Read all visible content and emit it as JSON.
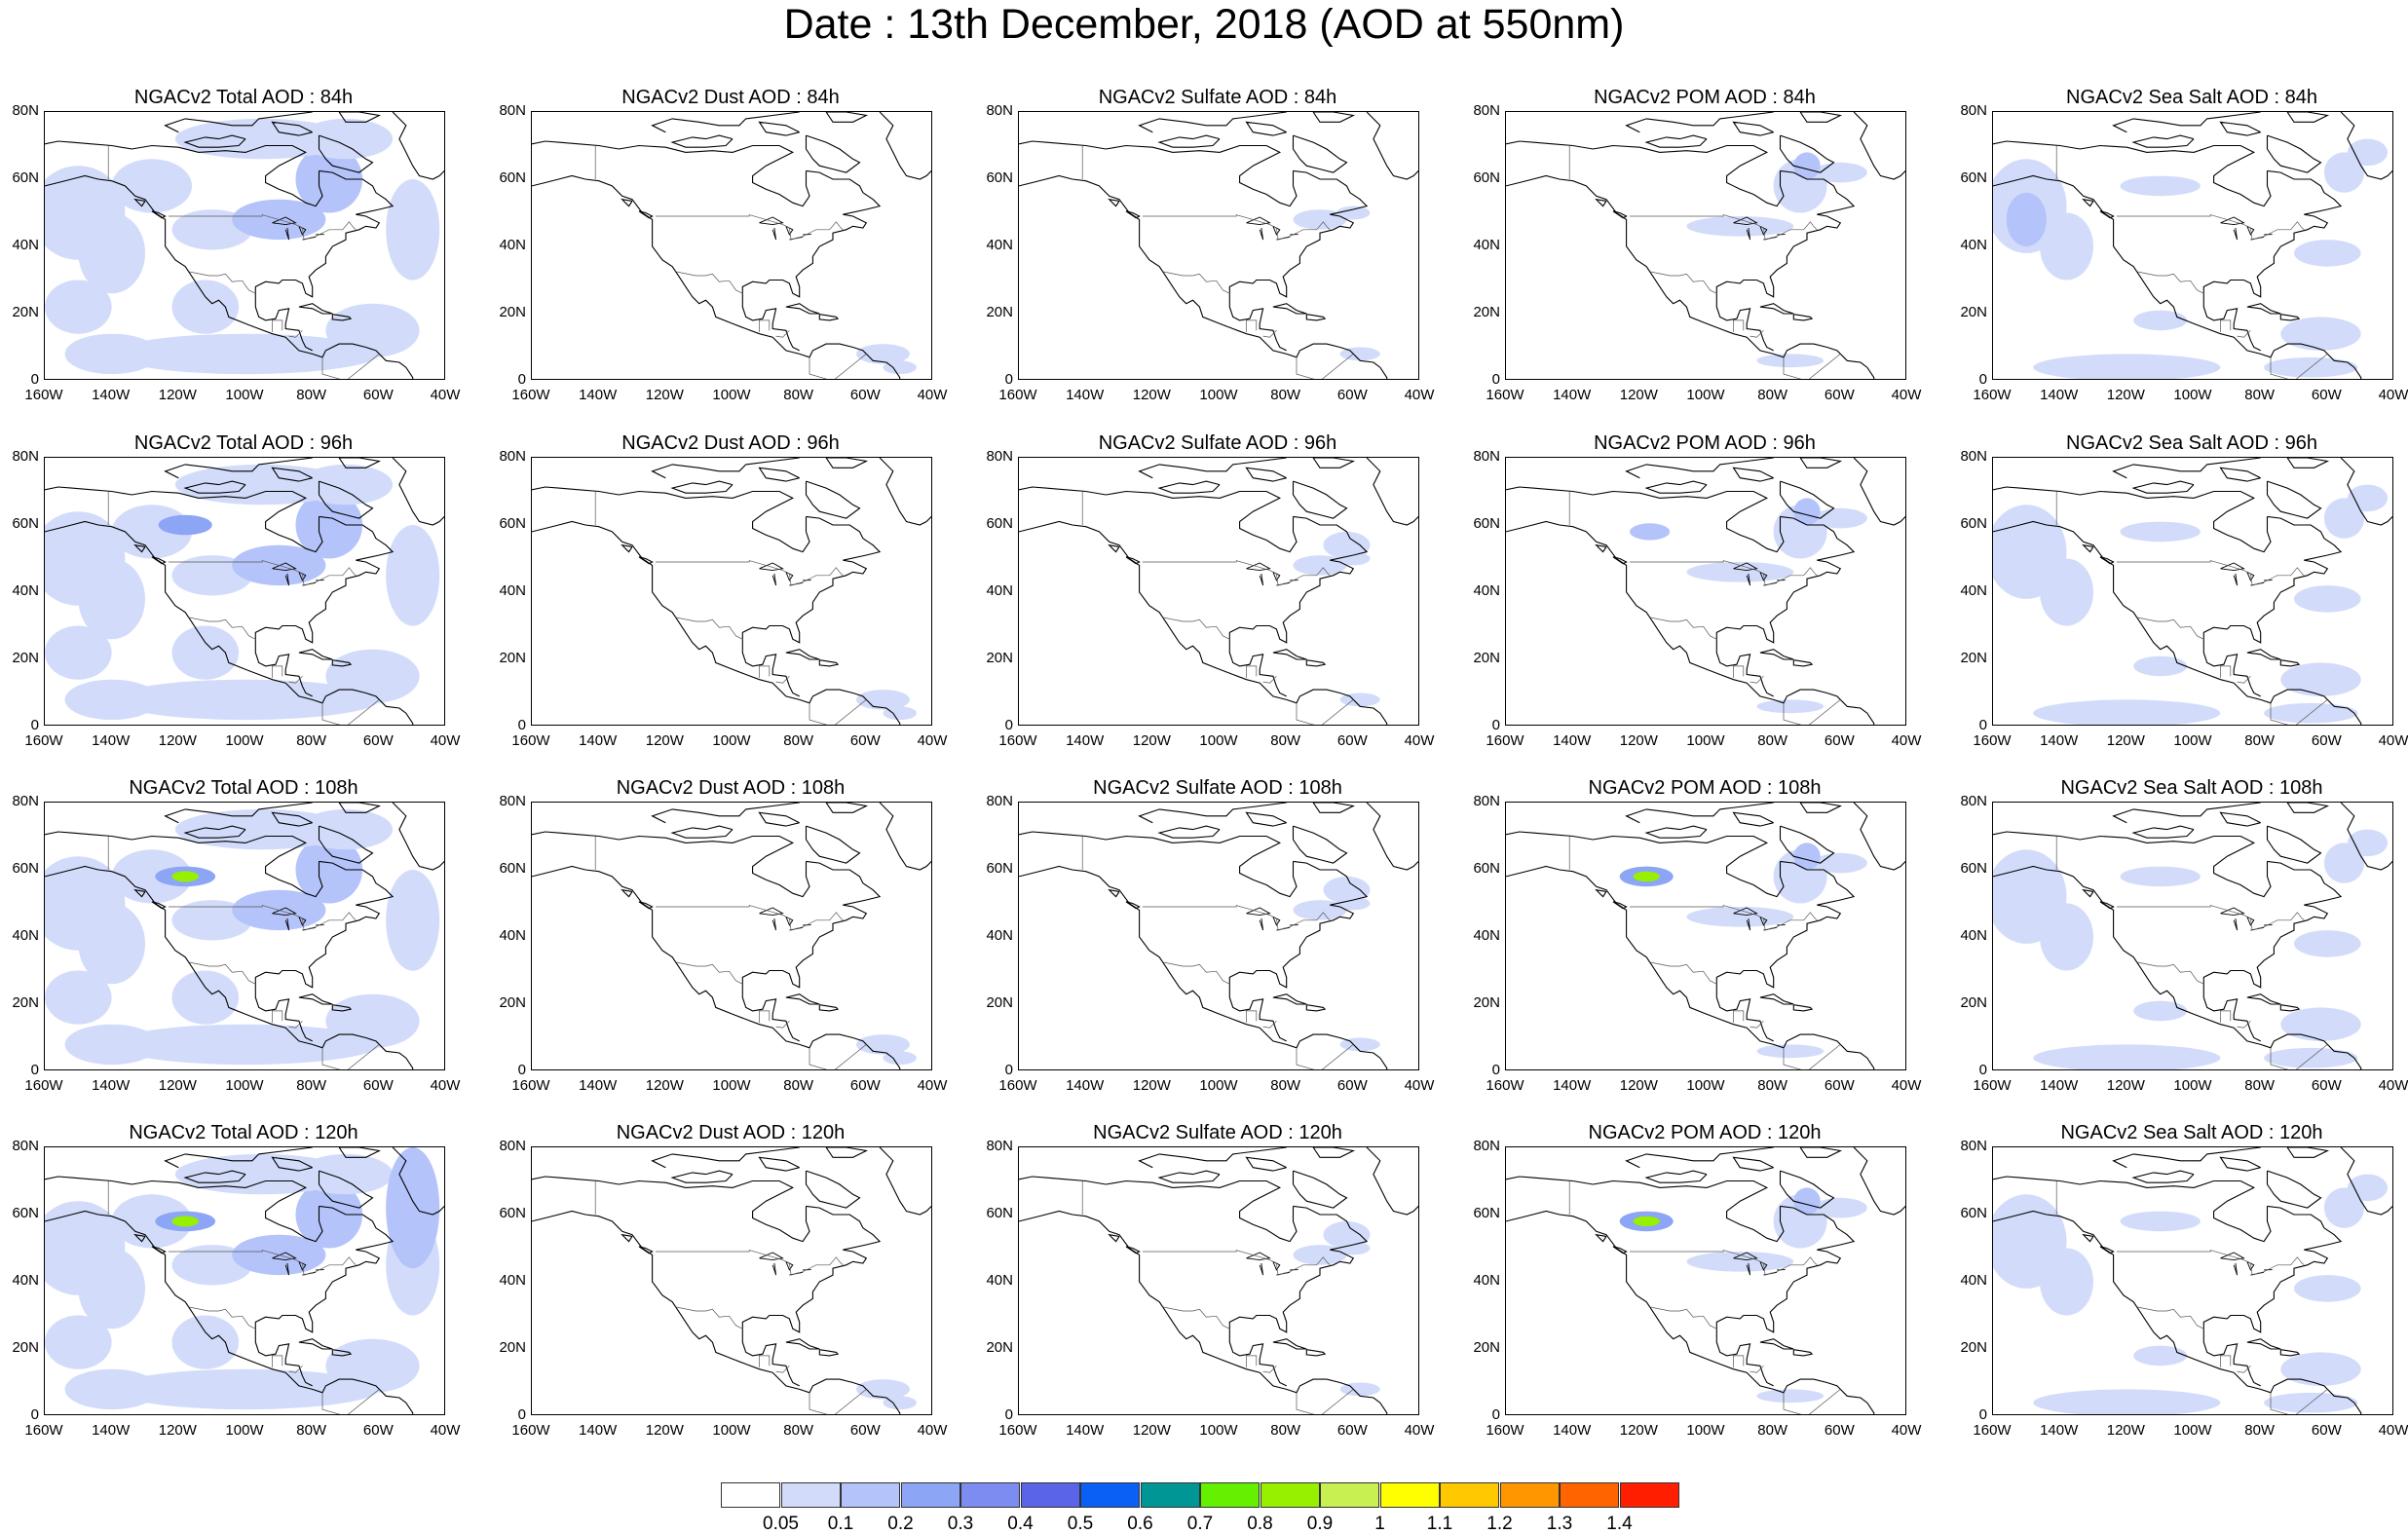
{
  "title": "Date : 13th December, 2018 (AOD at 550nm)",
  "panels": [
    [
      "NGACv2 Total AOD : 84h",
      "NGACv2 Dust AOD : 84h",
      "NGACv2 Sulfate AOD : 84h",
      "NGACv2 POM AOD : 84h",
      "NGACv2 Sea Salt AOD : 84h"
    ],
    [
      "NGACv2 Total AOD : 96h",
      "NGACv2 Dust AOD : 96h",
      "NGACv2 Sulfate AOD : 96h",
      "NGACv2 POM AOD : 96h",
      "NGACv2 Sea Salt AOD : 96h"
    ],
    [
      "NGACv2 Total AOD : 108h",
      "NGACv2 Dust AOD : 108h",
      "NGACv2 Sulfate AOD : 108h",
      "NGACv2 POM AOD : 108h",
      "NGACv2 Sea Salt AOD : 108h"
    ],
    [
      "NGACv2 Total AOD : 120h",
      "NGACv2 Dust AOD : 120h",
      "NGACv2 Sulfate AOD : 120h",
      "NGACv2 POM AOD : 120h",
      "NGACv2 Sea Salt  AOD : 120h"
    ]
  ],
  "panel_variables": [
    "Total",
    "Dust",
    "Sulfate",
    "POM",
    "Sea Salt"
  ],
  "y_ticks": [
    "80N",
    "60N",
    "40N",
    "20N",
    "0"
  ],
  "x_ticks": [
    "160W",
    "140W",
    "120W",
    "100W",
    "80W",
    "60W",
    "40W"
  ],
  "colorbar": {
    "labels": [
      "0.05",
      "0.1",
      "0.2",
      "0.3",
      "0.4",
      "0.5",
      "0.6",
      "0.7",
      "0.8",
      "0.9",
      "1",
      "1.1",
      "1.2",
      "1.3",
      "1.4"
    ],
    "colors": [
      "#ffffff",
      "#d2dcfa",
      "#b4c3fa",
      "#8ca5f5",
      "#7d8cf0",
      "#5a64e6",
      "#0a5ff5",
      "#009696",
      "#64f000",
      "#96f000",
      "#c8f050",
      "#ffff00",
      "#ffc800",
      "#ff9600",
      "#ff6400",
      "#ff1e00"
    ]
  },
  "chart_data": {
    "type": "heatmap",
    "map_extent": {
      "lon": [
        -160,
        -40
      ],
      "lat": [
        0,
        80
      ]
    },
    "forecast_hours": [
      "84h",
      "96h",
      "108h",
      "120h"
    ],
    "fields": [
      "Total",
      "Dust",
      "Sulfate",
      "POM",
      "Sea Salt"
    ],
    "legend_placement": "bottom"
  }
}
